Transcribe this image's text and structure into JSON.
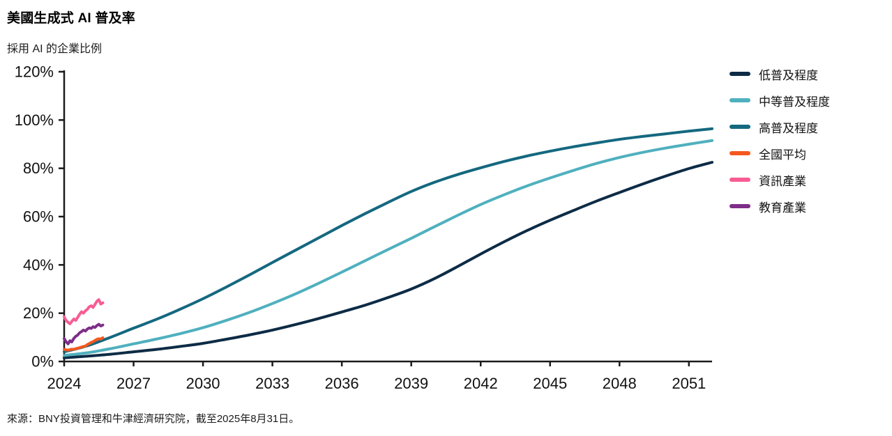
{
  "page": {
    "title": "美國生成式 AI 普及率",
    "subtitle": "採用 AI 的企業比例",
    "source": "來源：BNY投資管理和牛津經濟研究院，截至2025年8月31日。"
  },
  "colors": {
    "axis": "#1b1b1b",
    "tick_label": "#111111",
    "low": "#0d2b45",
    "medium": "#4fb0be",
    "high": "#14687f",
    "national_average": "#f4581f",
    "information_industry": "#f75c93",
    "education_industry": "#7e2e88"
  },
  "chart_data": {
    "type": "line",
    "title": "美國生成式 AI 普及率",
    "subtitle": "採用 AI 的企業比例",
    "xlabel": "",
    "ylabel": "採用 AI 的企業比例",
    "xlim": [
      2024,
      2052
    ],
    "ylim": [
      0,
      120
    ],
    "grid": false,
    "legend_position": "right",
    "x_ticks": [
      2024,
      2027,
      2030,
      2033,
      2036,
      2039,
      2042,
      2045,
      2048,
      2051
    ],
    "x_tick_labels": [
      "2024",
      "2027",
      "2030",
      "2033",
      "2036",
      "2039",
      "2042",
      "2045",
      "2048",
      "2051"
    ],
    "y_ticks": [
      0,
      20,
      40,
      60,
      80,
      100,
      120
    ],
    "y_tick_labels": [
      "0%",
      "20%",
      "40%",
      "60%",
      "80%",
      "100%",
      "120%"
    ],
    "series": [
      {
        "id": "low",
        "name": "低普及程度",
        "color": "#0d2b45",
        "style": "smooth",
        "x": [
          2024,
          2025,
          2026,
          2027,
          2028,
          2029,
          2030,
          2031,
          2032,
          2033,
          2034,
          2035,
          2036,
          2037,
          2038,
          2039,
          2040,
          2041,
          2042,
          2043,
          2044,
          2045,
          2046,
          2047,
          2048,
          2049,
          2050,
          2051,
          2052
        ],
        "values": [
          1.5,
          2.2,
          3.0,
          4.0,
          5.0,
          6.2,
          7.5,
          9.2,
          11.0,
          13.0,
          15.3,
          17.8,
          20.5,
          23.3,
          26.5,
          30.0,
          34.3,
          39.3,
          44.5,
          49.5,
          54.2,
          58.5,
          62.5,
          66.4,
          70.0,
          73.5,
          76.8,
          79.9,
          82.5
        ]
      },
      {
        "id": "medium",
        "name": "中等普及程度",
        "color": "#4fb0be",
        "style": "smooth",
        "x": [
          2024,
          2025,
          2026,
          2027,
          2028,
          2029,
          2030,
          2031,
          2032,
          2033,
          2034,
          2035,
          2036,
          2037,
          2038,
          2039,
          2040,
          2041,
          2042,
          2043,
          2044,
          2045,
          2046,
          2047,
          2048,
          2049,
          2050,
          2051,
          2052
        ],
        "values": [
          2.5,
          3.6,
          5.3,
          7.3,
          9.3,
          11.5,
          14.0,
          17.0,
          20.3,
          24.0,
          28.0,
          32.4,
          37.0,
          41.7,
          46.4,
          51.0,
          55.8,
          60.5,
          65.0,
          69.0,
          72.7,
          76.0,
          79.1,
          82.0,
          84.5,
          86.6,
          88.4,
          90.0,
          91.5
        ]
      },
      {
        "id": "high",
        "name": "高普及程度",
        "color": "#14687f",
        "style": "smooth",
        "x": [
          2024,
          2025,
          2026,
          2027,
          2028,
          2029,
          2030,
          2031,
          2032,
          2033,
          2034,
          2035,
          2036,
          2037,
          2038,
          2039,
          2040,
          2041,
          2042,
          2043,
          2044,
          2045,
          2046,
          2047,
          2048,
          2049,
          2050,
          2051,
          2052
        ],
        "values": [
          4.0,
          6.5,
          10.0,
          13.8,
          17.5,
          21.6,
          26.0,
          30.8,
          35.8,
          41.0,
          46.1,
          51.2,
          56.3,
          61.2,
          65.9,
          70.4,
          74.2,
          77.4,
          80.2,
          82.8,
          85.1,
          87.1,
          88.9,
          90.5,
          92.0,
          93.2,
          94.3,
          95.4,
          96.4
        ]
      },
      {
        "id": "national_average",
        "name": "全國平均",
        "color": "#f4581f",
        "style": "jagged",
        "points": [
          [
            2024.0,
            5.0
          ],
          [
            2024.08,
            4.8
          ],
          [
            2024.17,
            4.7
          ],
          [
            2024.25,
            4.9
          ],
          [
            2024.33,
            5.1
          ],
          [
            2024.42,
            5.0
          ],
          [
            2024.5,
            5.3
          ],
          [
            2024.58,
            5.5
          ],
          [
            2024.67,
            5.7
          ],
          [
            2024.75,
            6.0
          ],
          [
            2024.83,
            6.2
          ],
          [
            2024.92,
            6.4
          ],
          [
            2025.0,
            7.0
          ],
          [
            2025.08,
            7.4
          ],
          [
            2025.17,
            7.9
          ],
          [
            2025.25,
            8.2
          ],
          [
            2025.33,
            8.7
          ],
          [
            2025.42,
            9.2
          ],
          [
            2025.5,
            9.4
          ],
          [
            2025.58,
            9.3
          ],
          [
            2025.67,
            9.8
          ]
        ]
      },
      {
        "id": "information_industry",
        "name": "資訊產業",
        "color": "#f75c93",
        "style": "jagged",
        "points": [
          [
            2024.0,
            18.5
          ],
          [
            2024.08,
            17.0
          ],
          [
            2024.17,
            16.2
          ],
          [
            2024.25,
            15.6
          ],
          [
            2024.33,
            16.6
          ],
          [
            2024.42,
            17.6
          ],
          [
            2024.5,
            17.0
          ],
          [
            2024.58,
            18.2
          ],
          [
            2024.67,
            19.6
          ],
          [
            2024.75,
            20.6
          ],
          [
            2024.83,
            20.0
          ],
          [
            2024.92,
            21.0
          ],
          [
            2025.0,
            21.6
          ],
          [
            2025.08,
            22.6
          ],
          [
            2025.17,
            23.1
          ],
          [
            2025.25,
            22.4
          ],
          [
            2025.33,
            23.6
          ],
          [
            2025.42,
            25.0
          ],
          [
            2025.5,
            25.6
          ],
          [
            2025.58,
            23.8
          ],
          [
            2025.67,
            24.3
          ]
        ]
      },
      {
        "id": "education_industry",
        "name": "教育產業",
        "color": "#7e2e88",
        "style": "jagged",
        "points": [
          [
            2024.0,
            9.5
          ],
          [
            2024.08,
            8.2
          ],
          [
            2024.17,
            7.3
          ],
          [
            2024.25,
            8.6
          ],
          [
            2024.33,
            8.1
          ],
          [
            2024.42,
            9.6
          ],
          [
            2024.5,
            10.4
          ],
          [
            2024.58,
            10.9
          ],
          [
            2024.67,
            11.9
          ],
          [
            2024.75,
            12.4
          ],
          [
            2024.83,
            13.0
          ],
          [
            2024.92,
            12.6
          ],
          [
            2025.0,
            13.4
          ],
          [
            2025.08,
            13.9
          ],
          [
            2025.17,
            13.7
          ],
          [
            2025.25,
            14.4
          ],
          [
            2025.33,
            14.1
          ],
          [
            2025.42,
            14.9
          ],
          [
            2025.5,
            15.4
          ],
          [
            2025.58,
            14.7
          ],
          [
            2025.67,
            15.1
          ]
        ]
      }
    ]
  }
}
